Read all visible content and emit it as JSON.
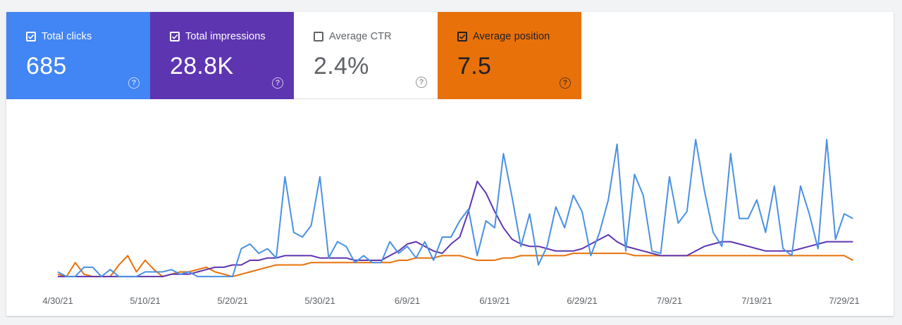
{
  "metrics": [
    {
      "key": "clicks",
      "label": "Total clicks",
      "value": "685",
      "checked": true,
      "color": "#4285f4"
    },
    {
      "key": "impressions",
      "label": "Total impressions",
      "value": "28.8K",
      "checked": true,
      "color": "#5e35b1"
    },
    {
      "key": "ctr",
      "label": "Average CTR",
      "value": "2.4%",
      "checked": false,
      "color": "#ffffff"
    },
    {
      "key": "position",
      "label": "Average position",
      "value": "7.5",
      "checked": true,
      "color": "#e8710a"
    }
  ],
  "chart_data": {
    "type": "line",
    "x_tick_labels": [
      "4/30/21",
      "5/10/21",
      "5/20/21",
      "5/30/21",
      "6/9/21",
      "6/19/21",
      "6/29/21",
      "7/9/21",
      "7/19/21",
      "7/29/21"
    ],
    "x_start": "4/30/21",
    "n_days": 92,
    "grid": false,
    "series": [
      {
        "name": "Total clicks",
        "color": "#4a90e2",
        "values": [
          5,
          3,
          3,
          7,
          7,
          3,
          6,
          3,
          3,
          3,
          5,
          5,
          5,
          6,
          4,
          5,
          3,
          3,
          3,
          3,
          3,
          15,
          17,
          13,
          15,
          11,
          46,
          22,
          20,
          25,
          46,
          11,
          18,
          16,
          9,
          12,
          9,
          9,
          18,
          13,
          16,
          11,
          18,
          10,
          20,
          20,
          27,
          32,
          12,
          27,
          24,
          56,
          37,
          16,
          30,
          8,
          16,
          33,
          24,
          38,
          31,
          12,
          22,
          36,
          60,
          14,
          47,
          38,
          14,
          13,
          46,
          26,
          31,
          62,
          40,
          22,
          16,
          56,
          28,
          28,
          36,
          22,
          42,
          15,
          12,
          42,
          30,
          15,
          62,
          19,
          30,
          28
        ]
      },
      {
        "name": "Total impressions",
        "color": "#5e35b1",
        "values": [
          3,
          3,
          3,
          3,
          3,
          3,
          3,
          3,
          3,
          3,
          3,
          3,
          3,
          4,
          4,
          4,
          5,
          6,
          7,
          7,
          8,
          8,
          10,
          10,
          11,
          11,
          12,
          12,
          12,
          12,
          11,
          11,
          11,
          11,
          10,
          10,
          10,
          10,
          12,
          14,
          17,
          18,
          16,
          14,
          13,
          17,
          20,
          31,
          44,
          39,
          31,
          24,
          19,
          17,
          16,
          16,
          15,
          14,
          14,
          14,
          15,
          17,
          19,
          21,
          18,
          16,
          15,
          14,
          13,
          12,
          12,
          12,
          12,
          14,
          16,
          17,
          18,
          18,
          17,
          16,
          15,
          14,
          14,
          14,
          14,
          15,
          16,
          17,
          18,
          18,
          18,
          18
        ]
      },
      {
        "name": "Average position",
        "color": "#e8710a",
        "values": [
          4,
          3,
          9,
          4,
          3,
          3,
          3,
          8,
          12,
          5,
          10,
          6,
          3,
          4,
          5,
          5,
          6,
          7,
          5,
          4,
          3,
          4,
          5,
          6,
          7,
          8,
          8,
          8,
          8,
          9,
          9,
          9,
          9,
          9,
          9,
          9,
          9,
          9,
          9,
          10,
          10,
          11,
          11,
          11,
          12,
          12,
          12,
          11,
          10,
          10,
          10,
          11,
          11,
          12,
          12,
          12,
          12,
          12,
          12,
          13,
          13,
          13,
          13,
          13,
          13,
          13,
          12,
          12,
          12,
          12,
          12,
          12,
          12,
          12,
          12,
          12,
          12,
          12,
          12,
          12,
          12,
          12,
          12,
          12,
          12,
          12,
          12,
          12,
          12,
          12,
          12,
          10
        ]
      }
    ]
  }
}
